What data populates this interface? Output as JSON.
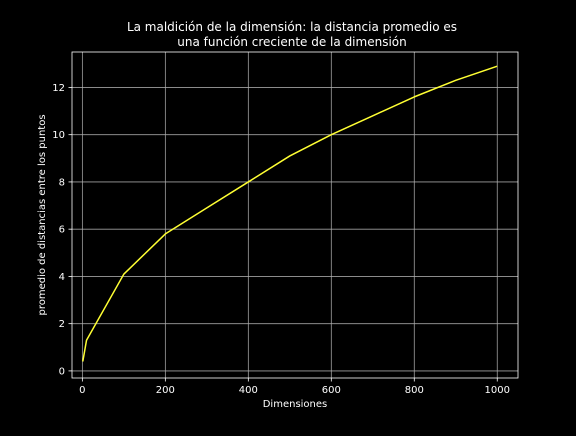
{
  "chart_data": {
    "type": "line",
    "title_lines": [
      "La maldición de la dimensión: la distancia promedio es",
      "una función creciente de la dimensión"
    ],
    "xlabel": "Dimensiones",
    "ylabel": "promedio de distancias entre los puntos",
    "xlim": [
      -25,
      1050
    ],
    "ylim": [
      -0.3,
      13.5
    ],
    "xticks": [
      0,
      200,
      400,
      600,
      800,
      1000
    ],
    "yticks": [
      0,
      2,
      4,
      6,
      8,
      10,
      12
    ],
    "xtick_labels": [
      "0",
      "200",
      "400",
      "600",
      "800",
      "1000"
    ],
    "ytick_labels": [
      "0",
      "2",
      "4",
      "6",
      "8",
      "10",
      "12"
    ],
    "grid": true,
    "series": [
      {
        "color": "#ffff33",
        "x": [
          1,
          10,
          100,
          200,
          300,
          400,
          500,
          600,
          700,
          800,
          900,
          1000
        ],
        "y": [
          0.4,
          1.3,
          4.1,
          5.8,
          6.9,
          8.0,
          9.1,
          10.0,
          10.8,
          11.6,
          12.3,
          12.9
        ]
      }
    ]
  },
  "colors": {
    "background": "#000000",
    "text": "#ffffff",
    "grid": "#b0b0b0",
    "line": "#ffff33"
  }
}
